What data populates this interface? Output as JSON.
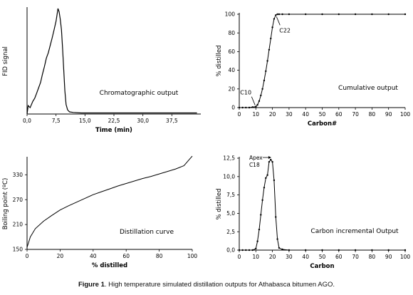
{
  "caption": {
    "label": "Figure 1",
    "text": ". High temperature simulated distillation outputs for Athabasca bitumen AGO."
  },
  "chart_data": [
    {
      "id": "chromatogram",
      "type": "line",
      "title": "Chromatographic output",
      "xlabel": "Time (min)",
      "ylabel": "FID signal",
      "xlim": [
        0,
        45
      ],
      "ylim": [
        0,
        100
      ],
      "xticks": [
        "0,0",
        "7,5",
        "15,0",
        "22,5",
        "30,0",
        "37,5"
      ],
      "xtick_values": [
        0,
        7.5,
        15,
        22.5,
        30,
        37.5
      ],
      "yticks": [],
      "grid": false,
      "x": [
        0,
        0.3,
        0.8,
        1.5,
        2.0,
        2.5,
        3.0,
        3.5,
        4.0,
        4.5,
        5.0,
        5.5,
        6.0,
        6.5,
        7.0,
        7.5,
        7.8,
        8.0,
        8.3,
        8.6,
        8.9,
        9.2,
        9.5,
        9.8,
        10.1,
        10.5,
        11.0,
        12.0,
        14.0,
        20.0,
        30.0,
        40.0,
        44.0
      ],
      "y": [
        0,
        8,
        6,
        12,
        15,
        20,
        25,
        30,
        38,
        45,
        53,
        58,
        65,
        72,
        80,
        88,
        95,
        100,
        97,
        90,
        80,
        62,
        42,
        22,
        9,
        4,
        2,
        1.5,
        1,
        1,
        1,
        1,
        1
      ]
    },
    {
      "id": "cumulative",
      "type": "line",
      "title": "Cumulative output",
      "xlabel": "Carbon#",
      "ylabel": "% distilled",
      "xlim": [
        0,
        100
      ],
      "ylim": [
        0,
        100
      ],
      "xticks": [
        "0",
        "10",
        "20",
        "30",
        "40",
        "50",
        "60",
        "70",
        "80",
        "90",
        "100"
      ],
      "xtick_values": [
        0,
        10,
        20,
        30,
        40,
        50,
        60,
        70,
        80,
        90,
        100
      ],
      "yticks": [
        "0",
        "20",
        "40",
        "60",
        "80",
        "100"
      ],
      "ytick_values": [
        0,
        20,
        40,
        60,
        80,
        100
      ],
      "grid": false,
      "markers": true,
      "x": [
        0,
        2,
        4,
        6,
        8,
        10,
        11,
        12,
        13,
        14,
        15,
        16,
        17,
        18,
        19,
        20,
        21,
        22,
        23,
        24,
        26,
        30,
        40,
        50,
        60,
        70,
        80,
        90,
        100
      ],
      "y": [
        0,
        0,
        0,
        0,
        0.5,
        1,
        3,
        7,
        13,
        20,
        29,
        39,
        50,
        62,
        74,
        86,
        95,
        99,
        100,
        100,
        100,
        100,
        100,
        100,
        100,
        100,
        100,
        100,
        100
      ],
      "annotations": [
        {
          "text": "C10",
          "x": 10,
          "y": 1
        },
        {
          "text": "C22",
          "x": 22,
          "y": 99
        }
      ]
    },
    {
      "id": "distillation",
      "type": "line",
      "title": "Distillation curve",
      "xlabel": "% distilled",
      "ylabel": "Boiling point (ºC)",
      "xlim": [
        0,
        100
      ],
      "ylim": [
        150,
        370
      ],
      "xticks": [
        "0",
        "20",
        "40",
        "60",
        "80",
        "100"
      ],
      "xtick_values": [
        0,
        20,
        40,
        60,
        80,
        100
      ],
      "yticks": [
        "150",
        "210",
        "270",
        "330"
      ],
      "ytick_values": [
        150,
        210,
        270,
        330
      ],
      "grid": false,
      "x": [
        0,
        2,
        5,
        10,
        15,
        20,
        25,
        30,
        35,
        40,
        45,
        50,
        55,
        60,
        65,
        70,
        75,
        80,
        85,
        90,
        95,
        98,
        100
      ],
      "y": [
        155,
        180,
        200,
        218,
        232,
        245,
        255,
        264,
        273,
        282,
        289,
        296,
        303,
        309,
        315,
        321,
        326,
        332,
        338,
        344,
        352,
        366,
        375
      ]
    },
    {
      "id": "incremental",
      "type": "line",
      "title": "Carbon incremental Output",
      "xlabel": "Carbon",
      "ylabel": "% distilled",
      "xlim": [
        0,
        100
      ],
      "ylim": [
        0,
        12.5
      ],
      "xticks": [
        "0",
        "10",
        "20",
        "30",
        "40",
        "50",
        "60",
        "70",
        "80",
        "90",
        "100"
      ],
      "xtick_values": [
        0,
        10,
        20,
        30,
        40,
        50,
        60,
        70,
        80,
        90,
        100
      ],
      "yticks": [
        "0,0",
        "2,5",
        "5,0",
        "7,5",
        "10,0",
        "12,5"
      ],
      "ytick_values": [
        0,
        2.5,
        5,
        7.5,
        10,
        12.5
      ],
      "grid": false,
      "markers": true,
      "x": [
        0,
        2,
        4,
        6,
        8,
        10,
        11,
        12,
        13,
        14,
        15,
        16,
        17,
        18,
        19,
        20,
        21,
        22,
        23,
        24,
        26,
        30,
        40,
        50,
        60,
        70,
        80,
        90,
        100
      ],
      "y": [
        0,
        0,
        0,
        0,
        0,
        0.2,
        1.2,
        2.8,
        4.8,
        6.8,
        8.5,
        9.8,
        10.2,
        12.0,
        12.3,
        12.0,
        9.5,
        4.5,
        1.5,
        0.3,
        0.1,
        0,
        0,
        0,
        0,
        0,
        0,
        0,
        0
      ],
      "annotations": [
        {
          "text": "Apex",
          "x": 18,
          "y": 12.5
        },
        {
          "text": "C18",
          "x": 18,
          "y": 11.5
        }
      ]
    }
  ]
}
